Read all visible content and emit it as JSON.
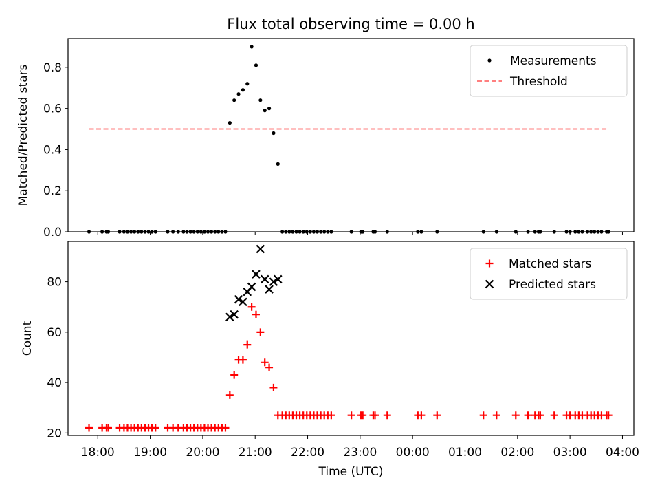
{
  "figure": {
    "title": "Flux total observing time = 0.00 h",
    "xlabel": "Time (UTC)"
  },
  "colors": {
    "measurements": "#000000",
    "threshold": "#ff7f7f",
    "matched": "#ff0000",
    "predicted": "#000000"
  },
  "chart_data": [
    {
      "type": "scatter",
      "ylabel": "Matched/Predicted stars",
      "xlim": [
        "17:26",
        "04:13"
      ],
      "ylim": [
        0,
        0.94
      ],
      "yticks": [
        0.0,
        0.2,
        0.4,
        0.6,
        0.8
      ],
      "ytick_labels": [
        "0.0",
        "0.2",
        "0.4",
        "0.6",
        "0.8"
      ],
      "xticks": [
        "18:00",
        "19:00",
        "20:00",
        "21:00",
        "22:00",
        "23:00",
        "00:00",
        "01:00",
        "02:00",
        "03:00",
        "04:00"
      ],
      "xtick_labels": [],
      "legend": "top-right",
      "series": [
        {
          "name": "Measurements",
          "marker": "dot",
          "points": [
            [
              "17:50",
              0
            ],
            [
              "18:05",
              0
            ],
            [
              "18:10",
              0
            ],
            [
              "18:12",
              0
            ],
            [
              "18:25",
              0
            ],
            [
              "18:30",
              0
            ],
            [
              "18:34",
              0
            ],
            [
              "18:38",
              0
            ],
            [
              "18:42",
              0
            ],
            [
              "18:46",
              0
            ],
            [
              "18:50",
              0
            ],
            [
              "18:54",
              0
            ],
            [
              "18:58",
              0
            ],
            [
              "19:02",
              0
            ],
            [
              "19:06",
              0
            ],
            [
              "19:20",
              0
            ],
            [
              "19:26",
              0
            ],
            [
              "19:32",
              0
            ],
            [
              "19:38",
              0
            ],
            [
              "19:42",
              0
            ],
            [
              "19:46",
              0
            ],
            [
              "19:50",
              0
            ],
            [
              "19:54",
              0
            ],
            [
              "19:58",
              0
            ],
            [
              "20:02",
              0
            ],
            [
              "20:06",
              0
            ],
            [
              "20:10",
              0
            ],
            [
              "20:14",
              0
            ],
            [
              "20:18",
              0
            ],
            [
              "20:22",
              0
            ],
            [
              "20:26",
              0
            ],
            [
              "20:31",
              0.53
            ],
            [
              "20:36",
              0.64
            ],
            [
              "20:41",
              0.67
            ],
            [
              "20:46",
              0.69
            ],
            [
              "20:51",
              0.72
            ],
            [
              "20:56",
              0.9
            ],
            [
              "21:01",
              0.81
            ],
            [
              "21:06",
              0.64
            ],
            [
              "21:11",
              0.59
            ],
            [
              "21:16",
              0.6
            ],
            [
              "21:21",
              0.48
            ],
            [
              "21:26",
              0.33
            ],
            [
              "21:31",
              0
            ],
            [
              "21:35",
              0
            ],
            [
              "21:39",
              0
            ],
            [
              "21:43",
              0
            ],
            [
              "21:47",
              0
            ],
            [
              "21:51",
              0
            ],
            [
              "21:55",
              0
            ],
            [
              "21:59",
              0
            ],
            [
              "22:03",
              0
            ],
            [
              "22:07",
              0
            ],
            [
              "22:11",
              0
            ],
            [
              "22:15",
              0
            ],
            [
              "22:19",
              0
            ],
            [
              "22:23",
              0
            ],
            [
              "22:27",
              0
            ],
            [
              "22:50",
              0
            ],
            [
              "23:01",
              0
            ],
            [
              "23:03",
              0
            ],
            [
              "23:15",
              0
            ],
            [
              "23:17",
              0
            ],
            [
              "23:31",
              0
            ],
            [
              "00:06",
              0
            ],
            [
              "00:10",
              0
            ],
            [
              "00:28",
              0
            ],
            [
              "01:21",
              0
            ],
            [
              "01:36",
              0
            ],
            [
              "01:58",
              0
            ],
            [
              "02:12",
              0
            ],
            [
              "02:20",
              0
            ],
            [
              "02:24",
              0
            ],
            [
              "02:26",
              0
            ],
            [
              "02:42",
              0
            ],
            [
              "02:56",
              0
            ],
            [
              "03:00",
              0
            ],
            [
              "03:06",
              0
            ],
            [
              "03:10",
              0
            ],
            [
              "03:14",
              0
            ],
            [
              "03:20",
              0
            ],
            [
              "03:24",
              0
            ],
            [
              "03:28",
              0
            ],
            [
              "03:32",
              0
            ],
            [
              "03:36",
              0
            ],
            [
              "03:42",
              0
            ],
            [
              "03:44",
              0
            ]
          ]
        },
        {
          "name": "Threshold",
          "type": "line",
          "style": "dashed",
          "points": [
            [
              "17:50",
              0.5
            ],
            [
              "03:44",
              0.5
            ]
          ]
        }
      ]
    },
    {
      "type": "scatter",
      "ylabel": "Count",
      "xlim": [
        "17:26",
        "04:13"
      ],
      "ylim": [
        19,
        96
      ],
      "yticks": [
        20,
        40,
        60,
        80
      ],
      "ytick_labels": [
        "20",
        "40",
        "60",
        "80"
      ],
      "xticks": [
        "18:00",
        "19:00",
        "20:00",
        "21:00",
        "22:00",
        "23:00",
        "00:00",
        "01:00",
        "02:00",
        "03:00",
        "04:00"
      ],
      "xtick_labels": [
        "18:00",
        "19:00",
        "20:00",
        "21:00",
        "22:00",
        "23:00",
        "00:00",
        "01:00",
        "02:00",
        "03:00",
        "04:00"
      ],
      "legend": "top-right",
      "series": [
        {
          "name": "Matched stars",
          "marker": "plus",
          "points": [
            [
              "17:50",
              22
            ],
            [
              "18:05",
              22
            ],
            [
              "18:10",
              22
            ],
            [
              "18:12",
              22
            ],
            [
              "18:25",
              22
            ],
            [
              "18:30",
              22
            ],
            [
              "18:34",
              22
            ],
            [
              "18:38",
              22
            ],
            [
              "18:42",
              22
            ],
            [
              "18:46",
              22
            ],
            [
              "18:50",
              22
            ],
            [
              "18:54",
              22
            ],
            [
              "18:58",
              22
            ],
            [
              "19:02",
              22
            ],
            [
              "19:06",
              22
            ],
            [
              "19:20",
              22
            ],
            [
              "19:26",
              22
            ],
            [
              "19:32",
              22
            ],
            [
              "19:38",
              22
            ],
            [
              "19:42",
              22
            ],
            [
              "19:46",
              22
            ],
            [
              "19:50",
              22
            ],
            [
              "19:54",
              22
            ],
            [
              "19:58",
              22
            ],
            [
              "20:02",
              22
            ],
            [
              "20:06",
              22
            ],
            [
              "20:10",
              22
            ],
            [
              "20:14",
              22
            ],
            [
              "20:18",
              22
            ],
            [
              "20:22",
              22
            ],
            [
              "20:26",
              22
            ],
            [
              "20:31",
              35
            ],
            [
              "20:36",
              43
            ],
            [
              "20:41",
              49
            ],
            [
              "20:46",
              49
            ],
            [
              "20:51",
              55
            ],
            [
              "20:56",
              70
            ],
            [
              "21:01",
              67
            ],
            [
              "21:06",
              60
            ],
            [
              "21:11",
              48
            ],
            [
              "21:16",
              46
            ],
            [
              "21:21",
              38
            ],
            [
              "21:26",
              27
            ],
            [
              "21:31",
              27
            ],
            [
              "21:35",
              27
            ],
            [
              "21:39",
              27
            ],
            [
              "21:43",
              27
            ],
            [
              "21:47",
              27
            ],
            [
              "21:51",
              27
            ],
            [
              "21:55",
              27
            ],
            [
              "21:59",
              27
            ],
            [
              "22:03",
              27
            ],
            [
              "22:07",
              27
            ],
            [
              "22:11",
              27
            ],
            [
              "22:15",
              27
            ],
            [
              "22:19",
              27
            ],
            [
              "22:23",
              27
            ],
            [
              "22:27",
              27
            ],
            [
              "22:50",
              27
            ],
            [
              "23:01",
              27
            ],
            [
              "23:03",
              27
            ],
            [
              "23:15",
              27
            ],
            [
              "23:17",
              27
            ],
            [
              "23:31",
              27
            ],
            [
              "00:06",
              27
            ],
            [
              "00:10",
              27
            ],
            [
              "00:28",
              27
            ],
            [
              "01:21",
              27
            ],
            [
              "01:36",
              27
            ],
            [
              "01:58",
              27
            ],
            [
              "02:12",
              27
            ],
            [
              "02:20",
              27
            ],
            [
              "02:24",
              27
            ],
            [
              "02:26",
              27
            ],
            [
              "02:42",
              27
            ],
            [
              "02:56",
              27
            ],
            [
              "03:00",
              27
            ],
            [
              "03:06",
              27
            ],
            [
              "03:10",
              27
            ],
            [
              "03:14",
              27
            ],
            [
              "03:20",
              27
            ],
            [
              "03:24",
              27
            ],
            [
              "03:28",
              27
            ],
            [
              "03:32",
              27
            ],
            [
              "03:36",
              27
            ],
            [
              "03:42",
              27
            ],
            [
              "03:44",
              27
            ]
          ]
        },
        {
          "name": "Predicted stars",
          "marker": "x",
          "points": [
            [
              "20:31",
              66
            ],
            [
              "20:36",
              67
            ],
            [
              "20:41",
              73
            ],
            [
              "20:46",
              72
            ],
            [
              "20:51",
              76
            ],
            [
              "20:56",
              78
            ],
            [
              "21:01",
              83
            ],
            [
              "21:06",
              93
            ],
            [
              "21:11",
              81
            ],
            [
              "21:16",
              77
            ],
            [
              "21:21",
              80
            ],
            [
              "21:26",
              81
            ]
          ]
        }
      ]
    }
  ]
}
